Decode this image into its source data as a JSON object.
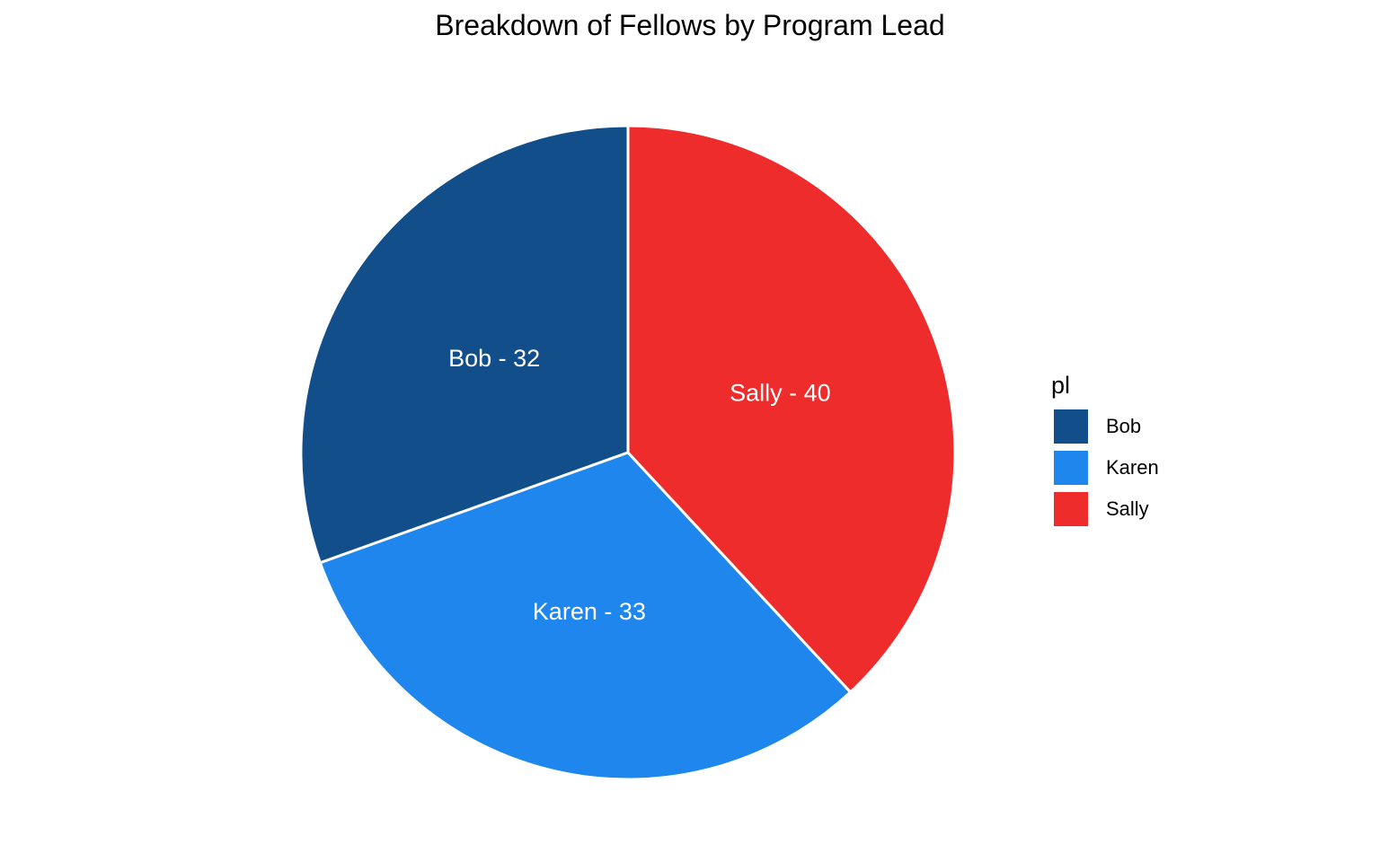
{
  "chart_data": {
    "type": "pie",
    "title": "Breakdown of Fellows by Program Lead",
    "legend_title": "pl",
    "legend_position": "right",
    "slices": [
      {
        "name": "Bob",
        "value": 32,
        "label": "Bob - 32",
        "color": "#114E8A"
      },
      {
        "name": "Karen",
        "value": 33,
        "label": "Karen - 33",
        "color": "#1E86EC"
      },
      {
        "name": "Sally",
        "value": 40,
        "label": "Sally - 40",
        "color": "#EE2C2C"
      }
    ]
  }
}
